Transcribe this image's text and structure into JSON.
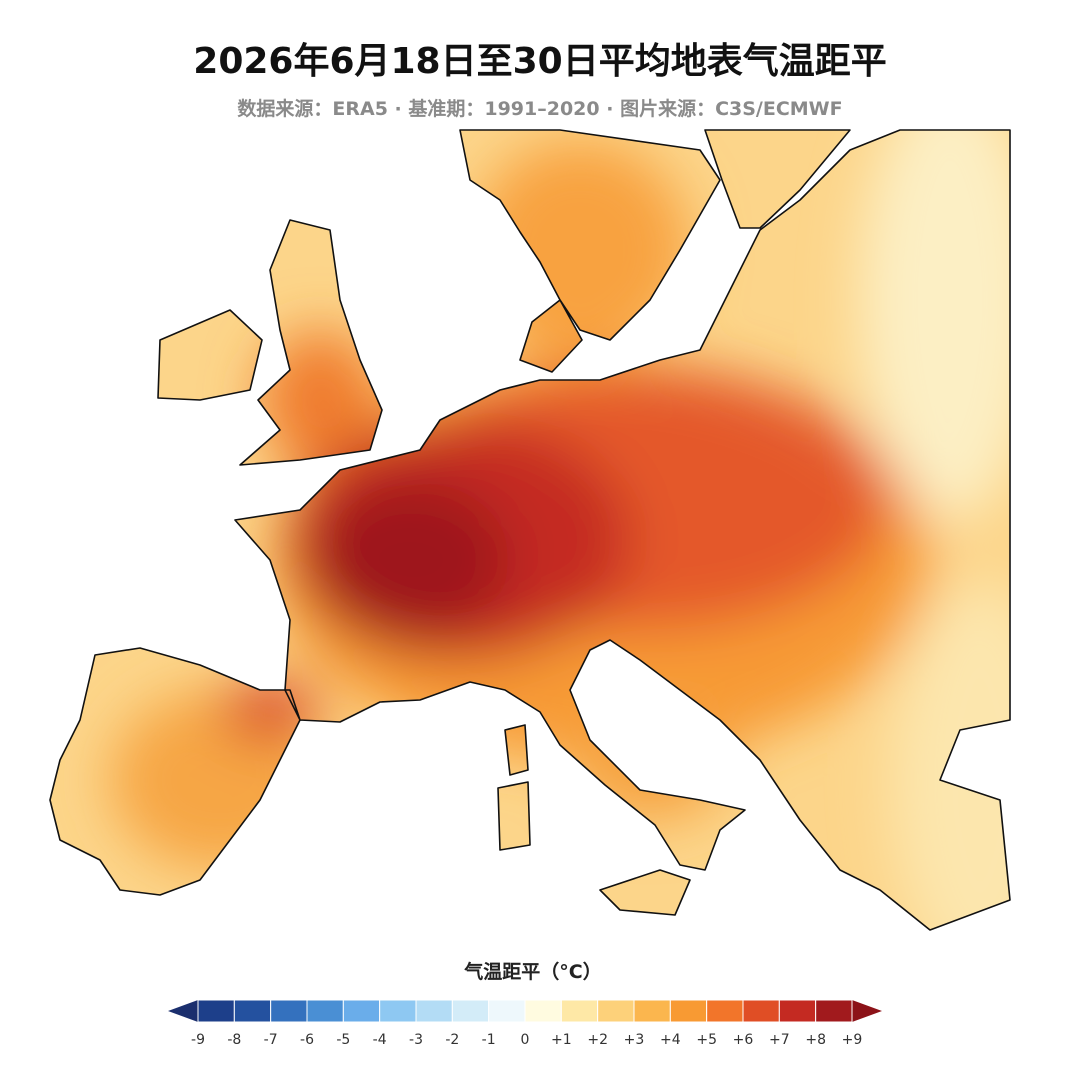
{
  "title": "2026年6月18日至30日平均地表气温距平",
  "subtitle": "数据来源：ERA5 · 基准期：1991–2020 · 图片来源：C3S/ECMWF",
  "legend": {
    "title": "气温距平（°C）",
    "ticks": [
      "-9",
      "-8",
      "-7",
      "-6",
      "-5",
      "-4",
      "-3",
      "-2",
      "-1",
      "0",
      "+1",
      "+2",
      "+3",
      "+4",
      "+5",
      "+6",
      "+7",
      "+8",
      "+9"
    ],
    "colors": [
      "#1d3f8a",
      "#24519f",
      "#3471be",
      "#4a8fd4",
      "#6aadea",
      "#8ec8f2",
      "#b3dcf5",
      "#d3ecf8",
      "#eef8fc",
      "#fffbe0",
      "#fee8a6",
      "#fdd17a",
      "#fbb64e",
      "#f89a33",
      "#f2752a",
      "#e04e25",
      "#c42a22",
      "#a11a1d"
    ],
    "under_color": "#1b2f6e",
    "over_color": "#8c1218"
  }
}
